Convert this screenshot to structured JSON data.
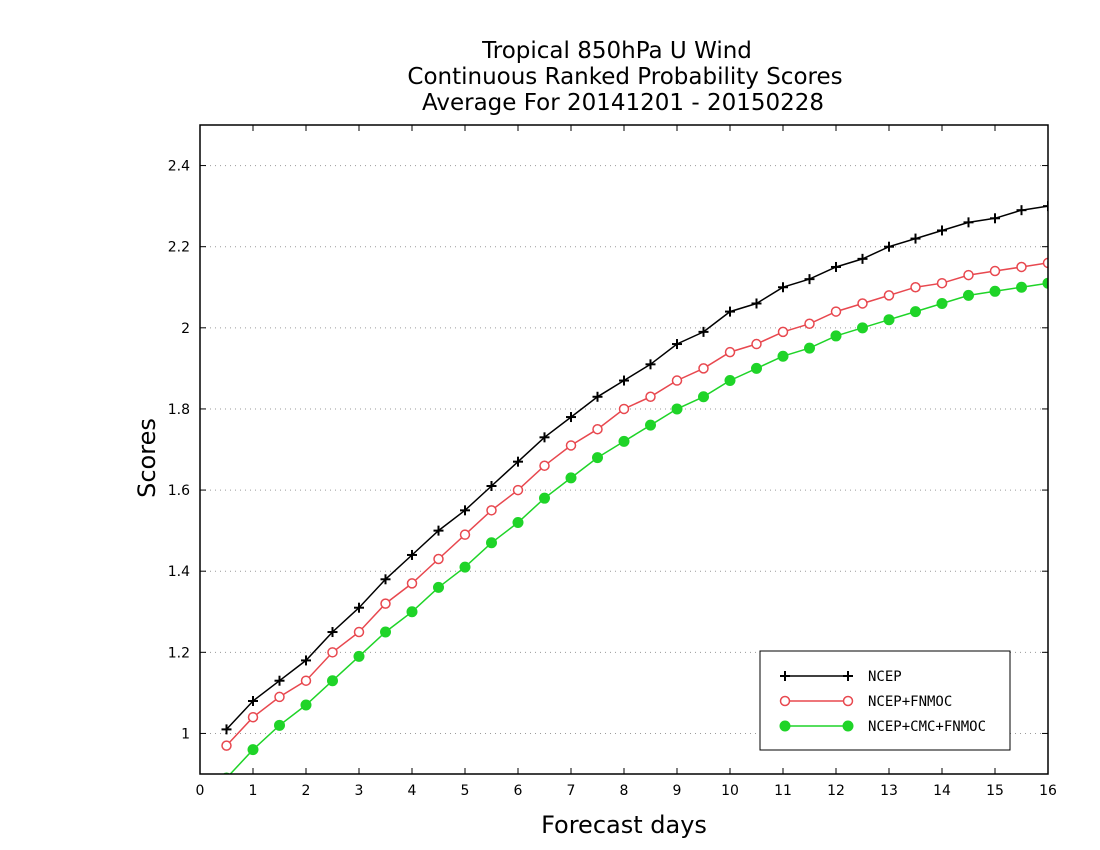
{
  "chart_data": {
    "type": "line",
    "title": [
      "Tropical 850hPa U Wind",
      "Continuous Ranked Probability Scores",
      "Average For 20141201 - 20150228"
    ],
    "xlabel": "Forecast days",
    "ylabel": "Scores",
    "xlim": [
      0,
      16
    ],
    "ylim": [
      0.9,
      2.5
    ],
    "xticks": [
      0,
      1,
      2,
      3,
      4,
      5,
      6,
      7,
      8,
      9,
      10,
      11,
      12,
      13,
      14,
      15,
      16
    ],
    "yticks": [
      1,
      1.2,
      1.4,
      1.6,
      1.8,
      2,
      2.2,
      2.4
    ],
    "ytick_labels": [
      "1",
      "1.2",
      "1.4",
      "1.6",
      "1.8",
      "2",
      "2.2",
      "2.4"
    ],
    "grid": "horizontal dotted",
    "legend_position": "bottom-right",
    "x": [
      0.5,
      1,
      1.5,
      2,
      2.5,
      3,
      3.5,
      4,
      4.5,
      5,
      5.5,
      6,
      6.5,
      7,
      7.5,
      8,
      8.5,
      9,
      9.5,
      10,
      10.5,
      11,
      11.5,
      12,
      12.5,
      13,
      13.5,
      14,
      14.5,
      15,
      15.5,
      16
    ],
    "series": [
      {
        "name": "NCEP",
        "color": "#000000",
        "marker": "plus",
        "values": [
          1.01,
          1.08,
          1.13,
          1.18,
          1.25,
          1.31,
          1.38,
          1.44,
          1.5,
          1.55,
          1.61,
          1.67,
          1.73,
          1.78,
          1.83,
          1.87,
          1.91,
          1.96,
          1.99,
          2.04,
          2.06,
          2.1,
          2.12,
          2.15,
          2.17,
          2.2,
          2.22,
          2.24,
          2.26,
          2.27,
          2.29,
          2.3
        ]
      },
      {
        "name": "NCEP+FNMOC",
        "color": "#e8484f",
        "marker": "open-circle",
        "values": [
          0.97,
          1.04,
          1.09,
          1.13,
          1.2,
          1.25,
          1.32,
          1.37,
          1.43,
          1.49,
          1.55,
          1.6,
          1.66,
          1.71,
          1.75,
          1.8,
          1.83,
          1.87,
          1.9,
          1.94,
          1.96,
          1.99,
          2.01,
          2.04,
          2.06,
          2.08,
          2.1,
          2.11,
          2.13,
          2.14,
          2.15,
          2.16
        ]
      },
      {
        "name": "NCEP+CMC+FNMOC",
        "color": "#1fd428",
        "marker": "filled-circle",
        "values": [
          0.89,
          0.96,
          1.02,
          1.07,
          1.13,
          1.19,
          1.25,
          1.3,
          1.36,
          1.41,
          1.47,
          1.52,
          1.58,
          1.63,
          1.68,
          1.72,
          1.76,
          1.8,
          1.83,
          1.87,
          1.9,
          1.93,
          1.95,
          1.98,
          2.0,
          2.02,
          2.04,
          2.06,
          2.08,
          2.09,
          2.1,
          2.11
        ]
      }
    ]
  }
}
